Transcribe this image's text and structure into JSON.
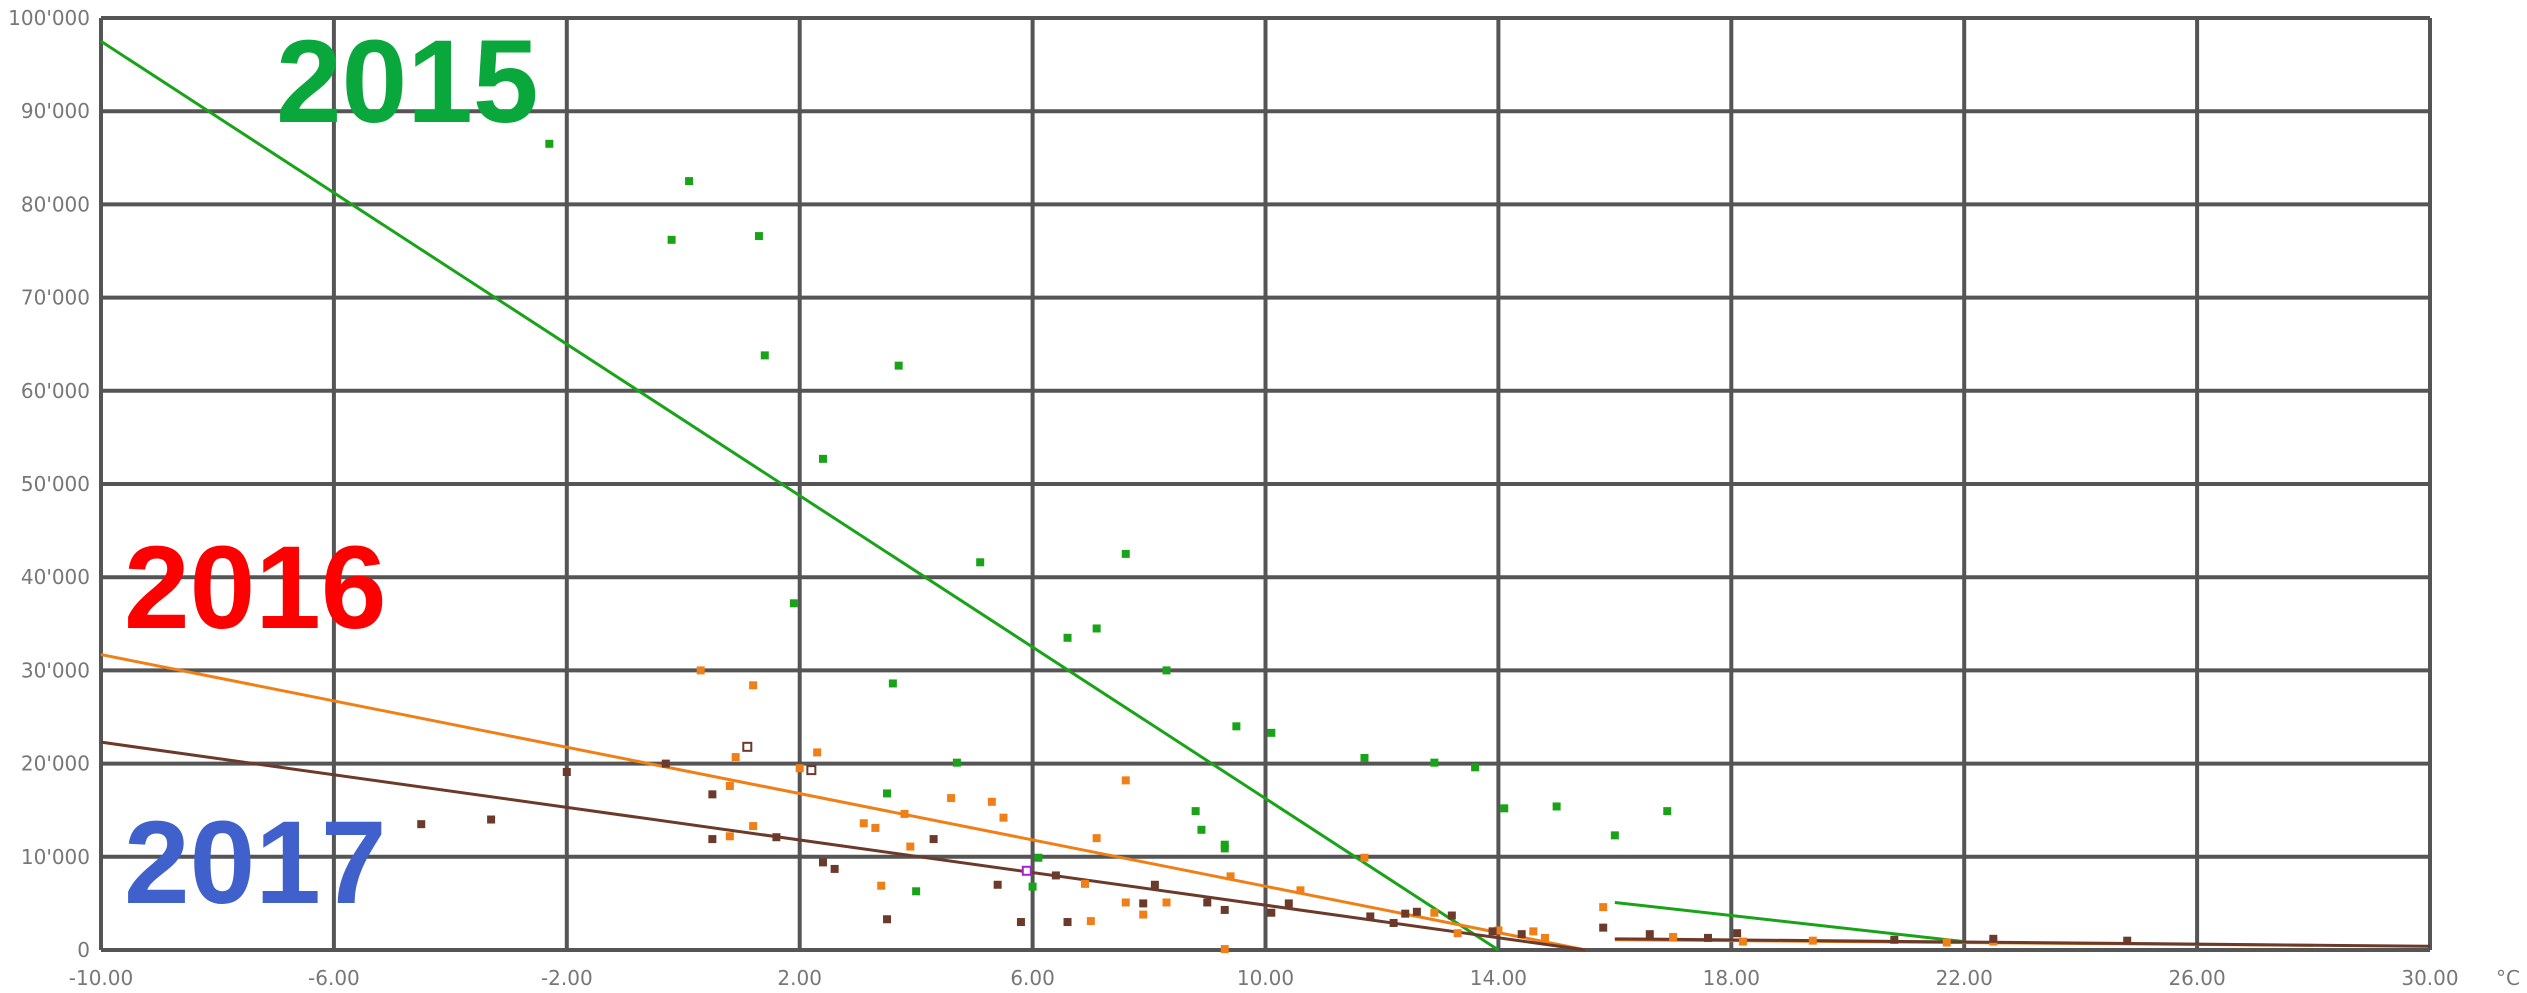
{
  "chart_data": {
    "type": "scatter",
    "x_unit": "°C",
    "xlim": [
      -10,
      30
    ],
    "ylim": [
      0,
      100000
    ],
    "x_ticks": [
      "-10.00",
      "-6.00",
      "-2.00",
      "2.00",
      "6.00",
      "10.00",
      "14.00",
      "18.00",
      "22.00",
      "26.00",
      "30.00"
    ],
    "y_ticks": [
      "0",
      "10'000",
      "20'000",
      "30'000",
      "40'000",
      "50'000",
      "60'000",
      "70'000",
      "80'000",
      "90'000",
      "100'000"
    ],
    "grid": true,
    "year_labels": [
      {
        "text": "2015",
        "color": "#0aa83c"
      },
      {
        "text": "2016",
        "color": "#ff0000"
      },
      {
        "text": "2017",
        "color": "#4060cc"
      }
    ],
    "series": [
      {
        "color": "#19a319",
        "trend": [
          [
            -10,
            97500
          ],
          [
            14,
            0
          ]
        ],
        "trend2": [
          [
            16,
            5100
          ],
          [
            22,
            900
          ]
        ],
        "points": [
          [
            -2.3,
            86500
          ],
          [
            0.1,
            82500
          ],
          [
            -0.2,
            76200
          ],
          [
            1.3,
            76600
          ],
          [
            1.4,
            63800
          ],
          [
            3.7,
            62700
          ],
          [
            2.4,
            52700
          ],
          [
            5.1,
            41600
          ],
          [
            7.6,
            42500
          ],
          [
            6.6,
            33500
          ],
          [
            7.1,
            34500
          ],
          [
            1.9,
            37200
          ],
          [
            8.3,
            30000
          ],
          [
            3.6,
            28600
          ],
          [
            4.7,
            20100
          ],
          [
            9.5,
            24000
          ],
          [
            10.1,
            23300
          ],
          [
            11.7,
            20600
          ],
          [
            12.9,
            20100
          ],
          [
            13.6,
            19600
          ],
          [
            8.8,
            14900
          ],
          [
            8.9,
            12900
          ],
          [
            9.3,
            11300
          ],
          [
            9.3,
            10900
          ],
          [
            3.5,
            16800
          ],
          [
            14.1,
            15200
          ],
          [
            15.0,
            15400
          ],
          [
            16.0,
            12300
          ],
          [
            16.9,
            14900
          ],
          [
            6.0,
            6800
          ],
          [
            4.0,
            6300
          ],
          [
            6.1,
            9900
          ]
        ]
      },
      {
        "color": "#f07f17",
        "trend": [
          [
            -10,
            31700
          ],
          [
            15.5,
            0
          ]
        ],
        "trend2": [
          [
            16,
            1100
          ],
          [
            28,
            500
          ]
        ],
        "points": [
          [
            0.3,
            30000
          ],
          [
            1.2,
            28400
          ],
          [
            0.9,
            20700
          ],
          [
            2.3,
            21200
          ],
          [
            2.0,
            19500
          ],
          [
            0.8,
            17600
          ],
          [
            4.6,
            16300
          ],
          [
            5.3,
            15900
          ],
          [
            3.8,
            14600
          ],
          [
            5.5,
            14200
          ],
          [
            3.1,
            13600
          ],
          [
            3.3,
            13100
          ],
          [
            1.2,
            13300
          ],
          [
            7.6,
            18200
          ],
          [
            0.8,
            12200
          ],
          [
            3.9,
            11100
          ],
          [
            7.1,
            12000
          ],
          [
            3.4,
            6900
          ],
          [
            6.9,
            7100
          ],
          [
            9.4,
            7900
          ],
          [
            10.6,
            6400
          ],
          [
            7.6,
            5100
          ],
          [
            8.3,
            5100
          ],
          [
            11.7,
            9900
          ],
          [
            12.9,
            4000
          ],
          [
            13.3,
            1800
          ],
          [
            14.0,
            2100
          ],
          [
            14.6,
            2000
          ],
          [
            14.8,
            1300
          ],
          [
            15.8,
            4600
          ],
          [
            17.0,
            1400
          ],
          [
            18.2,
            900
          ],
          [
            19.4,
            1000
          ],
          [
            21.7,
            800
          ],
          [
            22.5,
            900
          ],
          [
            9.3,
            100
          ],
          [
            7.0,
            3100
          ],
          [
            7.9,
            3800
          ]
        ]
      },
      {
        "color": "#6b3a2a",
        "trend": [
          [
            -10,
            22300
          ],
          [
            15.5,
            0
          ]
        ],
        "trend2": [
          [
            16,
            1200
          ],
          [
            30,
            400
          ]
        ],
        "points": [
          [
            -4.5,
            13500
          ],
          [
            -3.3,
            14000
          ],
          [
            -2.0,
            19100
          ],
          [
            -0.3,
            20000
          ],
          [
            0.5,
            16700
          ],
          [
            0.5,
            11900
          ],
          [
            1.6,
            12100
          ],
          [
            2.4,
            9400
          ],
          [
            2.6,
            8700
          ],
          [
            3.5,
            3300
          ],
          [
            4.3,
            11900
          ],
          [
            5.4,
            7000
          ],
          [
            5.8,
            3000
          ],
          [
            6.4,
            8000
          ],
          [
            6.6,
            3000
          ],
          [
            7.9,
            5000
          ],
          [
            8.1,
            7000
          ],
          [
            9.0,
            5100
          ],
          [
            9.3,
            4300
          ],
          [
            10.1,
            4000
          ],
          [
            10.4,
            5000
          ],
          [
            11.8,
            3600
          ],
          [
            12.2,
            2900
          ],
          [
            12.4,
            3900
          ],
          [
            12.6,
            4100
          ],
          [
            13.2,
            3700
          ],
          [
            13.9,
            2000
          ],
          [
            14.4,
            1700
          ],
          [
            15.8,
            2400
          ],
          [
            16.6,
            1700
          ],
          [
            17.6,
            1300
          ],
          [
            18.1,
            1800
          ],
          [
            20.8,
            1100
          ],
          [
            22.5,
            1200
          ],
          [
            24.8,
            1000
          ]
        ]
      }
    ],
    "highlight_points": [
      {
        "x": 1.1,
        "y": 21800,
        "color": "#6b3a2a"
      },
      {
        "x": 2.2,
        "y": 19300,
        "color": "#6b3a2a"
      },
      {
        "x": 5.9,
        "y": 8500,
        "color": "#aa22cc"
      }
    ]
  }
}
